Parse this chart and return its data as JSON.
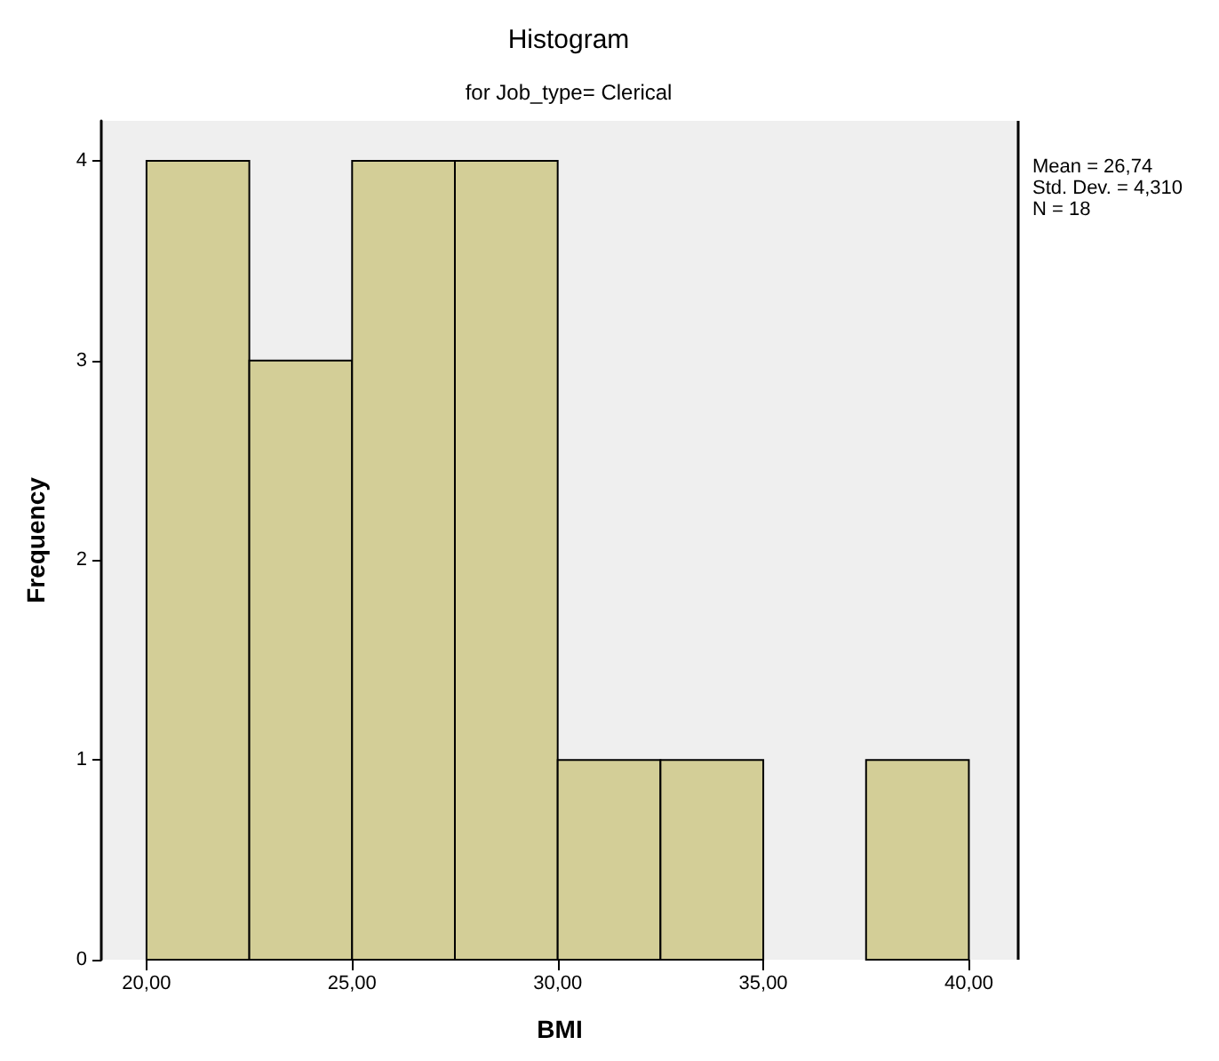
{
  "chart_data": {
    "type": "histogram",
    "title": "Histogram",
    "subtitle": "for Job_type= Clerical",
    "xlabel": "BMI",
    "ylabel": "Frequency",
    "bins": [
      20,
      22.5,
      25,
      27.5,
      30,
      32.5,
      35,
      37.5,
      40
    ],
    "values": [
      4,
      3,
      4,
      4,
      1,
      1,
      0,
      1
    ],
    "color": "#d3ce97",
    "xlim": [
      18.9,
      41.2
    ],
    "xticks": [
      {
        "value": 20,
        "label": "20,00"
      },
      {
        "value": 25,
        "label": "25,00"
      },
      {
        "value": 30,
        "label": "30,00"
      },
      {
        "value": 35,
        "label": "35,00"
      },
      {
        "value": 40,
        "label": "40,00"
      }
    ],
    "ylim": [
      0,
      4.2
    ],
    "yticks": [
      0,
      1,
      2,
      3,
      4
    ],
    "grid": false,
    "annotations": [
      "Mean = 26,74\nStd. Dev. = 4,310\nN = 18"
    ]
  }
}
